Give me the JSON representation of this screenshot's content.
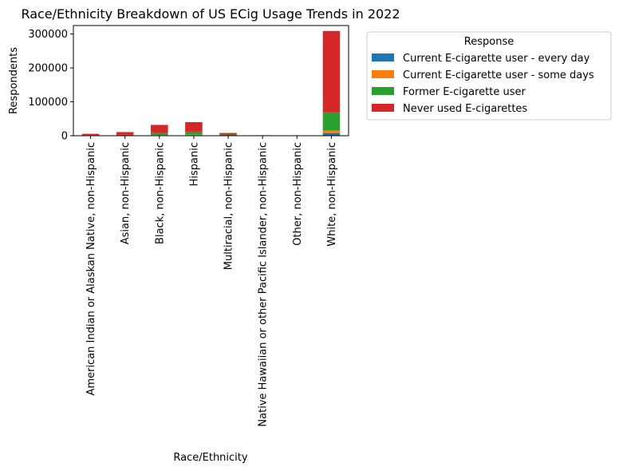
{
  "chart_data": {
    "type": "bar",
    "stacked": true,
    "title": "Race/Ethnicity Breakdown of US ECig Usage Trends in 2022",
    "xlabel": "Race/Ethnicity",
    "ylabel": "Respondents",
    "ylim": [
      0,
      325000
    ],
    "yticks": [
      0,
      100000,
      200000,
      300000
    ],
    "grid": false,
    "legend_position": "outside-right",
    "legend_title": "Response",
    "categories": [
      "American Indian or Alaskan Native, non-Hispanic",
      "Asian, non-Hispanic",
      "Black, non-Hispanic",
      "Hispanic",
      "Multiracial, non-Hispanic",
      "Native Hawaiian or other Pacific Islander, non-Hispanic",
      "Other, non-Hispanic",
      "White, non-Hispanic"
    ],
    "series": [
      {
        "name": "Current E-cigarette user - every day",
        "color": "#1f77b4",
        "values": [
          300,
          300,
          900,
          1500,
          500,
          100,
          30,
          8000
        ]
      },
      {
        "name": "Current E-cigarette user - some days",
        "color": "#ff7f0e",
        "values": [
          300,
          400,
          1000,
          1500,
          600,
          100,
          30,
          7000
        ]
      },
      {
        "name": "Former E-cigarette user",
        "color": "#2ca02c",
        "values": [
          1500,
          2000,
          6000,
          9000,
          2500,
          500,
          200,
          54000
        ]
      },
      {
        "name": "Never used E-cigarettes",
        "color": "#d62728",
        "values": [
          3500,
          8000,
          24000,
          28000,
          4500,
          700,
          300,
          240000
        ]
      }
    ]
  }
}
